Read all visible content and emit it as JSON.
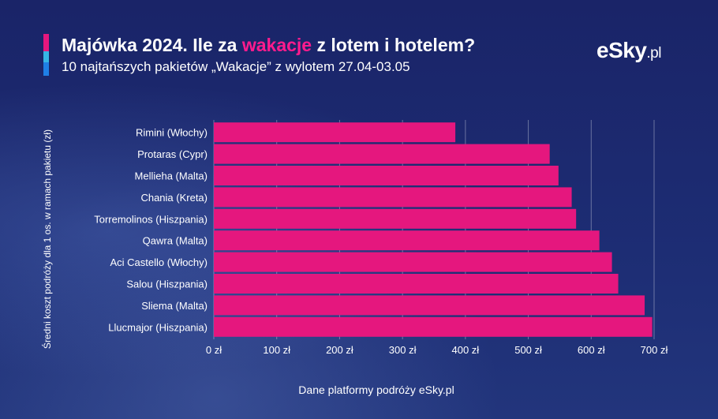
{
  "header": {
    "title_pre": "Majówka 2024. Ile za ",
    "title_highlight": "wakacje",
    "title_post": " z lotem i hotelem?",
    "subtitle": "10 najtańszych pakietów „Wakacje” z wylotem 27.04-03.05",
    "logo_main": "eSky",
    "logo_suffix": ".pl"
  },
  "source": "Dane platformy podróży eSky.pl",
  "colors": {
    "background": "#1c2a6e",
    "bar": "#e5177e",
    "accent_pink": "#e5177e",
    "accent_cyan": "#36b5e6",
    "accent_blue": "#1f7fe6"
  },
  "chart_data": {
    "type": "bar",
    "orientation": "horizontal",
    "categories": [
      "Rimini (Włochy)",
      "Protaras (Cypr)",
      "Mellieha (Malta)",
      "Chania (Kreta)",
      "Torremolinos (Hiszpania)",
      "Qawra (Malta)",
      "Aci Castello (Włochy)",
      "Salou (Hiszpania)",
      "Sliema (Malta)",
      "Llucmajor (Hiszpania)"
    ],
    "values": [
      384,
      534,
      548,
      569,
      576,
      613,
      633,
      643,
      685,
      697
    ],
    "xlim": [
      0,
      700
    ],
    "xticks": [
      0,
      100,
      200,
      300,
      400,
      500,
      600,
      700
    ],
    "xtick_labels": [
      "0 zł",
      "100 zł",
      "200 zł",
      "300 zł",
      "400 zł",
      "500 zł",
      "600 zł",
      "700 zł"
    ],
    "ylabel": "Średni koszt podróży dla 1 os. w ramach pakietu (zł)",
    "xlabel": "",
    "grid": true,
    "legend": "none"
  }
}
